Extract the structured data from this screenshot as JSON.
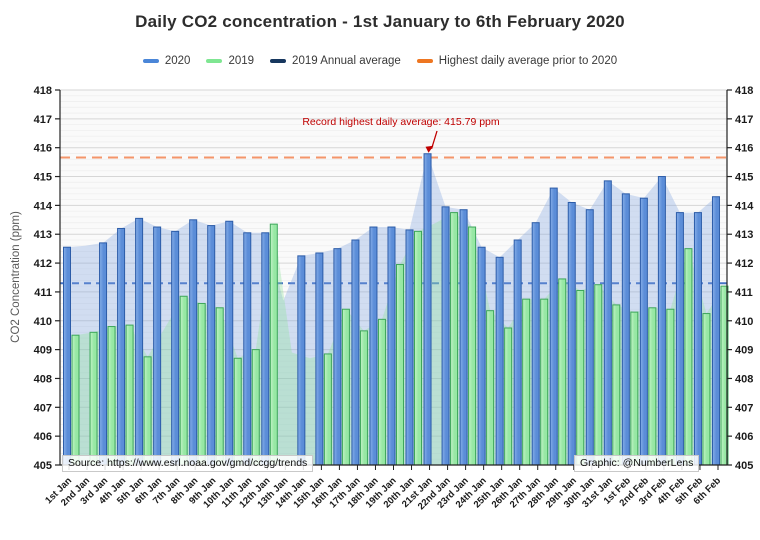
{
  "title": "Daily CO2 concentration - 1st January to 6th February 2020",
  "y_axis_title": "CO2 Concentration (ppm)",
  "legend": {
    "items": [
      {
        "label": "2020",
        "color": "#4a86d8"
      },
      {
        "label": "2019",
        "color": "#7fe692"
      },
      {
        "label": "2019 Annual average",
        "color": "#17375e"
      },
      {
        "label": "Highest daily average prior to 2020",
        "color": "#ee7621"
      }
    ]
  },
  "annotation": {
    "text": "Record highest daily average: 415.79 ppm",
    "color": "#c00000"
  },
  "source_note": "Source: https://www.esrl.noaa.gov/gmd/ccgg/trends",
  "credit_note": "Graphic: @NumberLens",
  "chart_data": {
    "type": "bar",
    "title": "Daily CO2 concentration - 1st January to 6th February 2020",
    "ylabel": "CO2 Concentration (ppm)",
    "ylim": [
      405,
      418
    ],
    "ytick_step": 1,
    "grid": "on",
    "legend_position": "top",
    "right_axis_mirror": true,
    "categories": [
      "1st Jan",
      "2nd Jan",
      "3rd Jan",
      "4th Jan",
      "5th Jan",
      "6th Jan",
      "7th Jan",
      "8th Jan",
      "9th Jan",
      "10th Jan",
      "11th Jan",
      "12th Jan",
      "13th Jan",
      "14th Jan",
      "15th Jan",
      "16th Jan",
      "17th Jan",
      "18th Jan",
      "19th Jan",
      "20th Jan",
      "21st Jan",
      "22nd Jan",
      "23rd Jan",
      "24th Jan",
      "25th Jan",
      "26th Jan",
      "27th Jan",
      "28th Jan",
      "29th Jan",
      "30th Jan",
      "31st Jan",
      "1st Feb",
      "2nd Feb",
      "3rd Feb",
      "4th Feb",
      "5th Feb",
      "6th Feb"
    ],
    "series": [
      {
        "name": "2020",
        "color": "#5b8dd8",
        "border": "#2c5ca8",
        "area": "rgba(124,162,224,0.32)",
        "values": [
          412.55,
          null,
          412.7,
          413.2,
          413.55,
          413.25,
          413.1,
          413.5,
          413.3,
          413.45,
          413.05,
          413.05,
          null,
          412.25,
          412.35,
          412.5,
          412.8,
          413.25,
          413.25,
          413.15,
          415.79,
          413.95,
          413.85,
          412.55,
          412.2,
          412.8,
          413.4,
          414.6,
          414.1,
          413.85,
          414.85,
          414.4,
          414.25,
          415.0,
          413.75,
          413.75,
          414.3
        ]
      },
      {
        "name": "2019",
        "color": "#97e8a4",
        "border": "#3da65a",
        "area": "rgba(138,226,150,0.32)",
        "values": [
          409.5,
          409.6,
          409.8,
          409.85,
          408.75,
          null,
          410.85,
          410.6,
          410.45,
          408.7,
          409.0,
          413.35,
          null,
          null,
          408.85,
          410.4,
          409.65,
          410.05,
          411.95,
          413.1,
          null,
          413.75,
          413.25,
          410.35,
          409.75,
          410.75,
          410.75,
          411.45,
          411.05,
          411.25,
          410.55,
          410.3,
          410.45,
          410.4,
          412.5,
          410.25,
          411.2
        ]
      }
    ],
    "reference_lines": [
      {
        "name": "2019 Annual average",
        "value": 411.3,
        "color": "#4472c4",
        "dash": "7,5"
      },
      {
        "name": "Highest daily average prior to 2020",
        "value": 415.66,
        "color": "#f4956a",
        "dash": "10,6"
      }
    ],
    "record_point": {
      "category": "21st Jan",
      "value": 415.79
    },
    "area_interpolation": [
      {
        "series": "2020",
        "category": "2nd Jan",
        "value": 412.6
      },
      {
        "series": "2020",
        "category": "13th Jan",
        "value": 410.7
      },
      {
        "series": "2019",
        "category": "6th Jan",
        "value": 409.8
      },
      {
        "series": "2019",
        "category": "13th Jan",
        "value": 408.9
      },
      {
        "series": "2019",
        "category": "14th Jan",
        "value": 408.7
      },
      {
        "series": "2019",
        "category": "21st Jan",
        "value": 413.4
      }
    ]
  }
}
